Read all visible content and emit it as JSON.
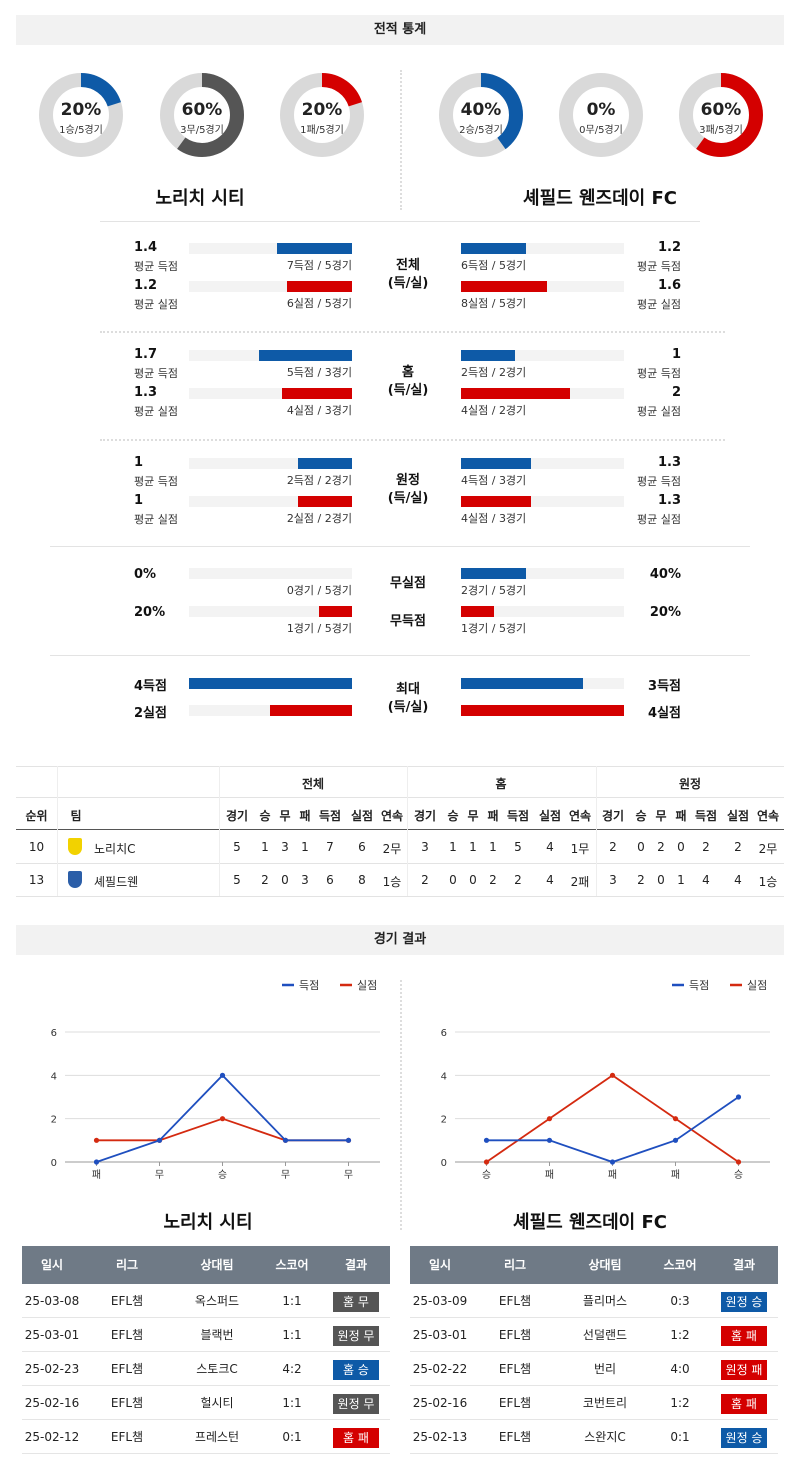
{
  "sections": {
    "stats_title": "전적 통계",
    "results_title": "경기 결과"
  },
  "teams": {
    "home": "노리치 시티",
    "away": "셰필드 웬즈데이 FC"
  },
  "donuts": {
    "home": [
      {
        "pct": "20%",
        "sub": "1승/5경기",
        "value": 0.2,
        "color": "#0e5aa7"
      },
      {
        "pct": "60%",
        "sub": "3무/5경기",
        "value": 0.6,
        "color": "#555555"
      },
      {
        "pct": "20%",
        "sub": "1패/5경기",
        "value": 0.2,
        "color": "#d40000"
      }
    ],
    "away": [
      {
        "pct": "40%",
        "sub": "2승/5경기",
        "value": 0.4,
        "color": "#0e5aa7"
      },
      {
        "pct": "0%",
        "sub": "0무/5경기",
        "value": 0.0,
        "color": "#555555"
      },
      {
        "pct": "60%",
        "sub": "3패/5경기",
        "value": 0.6,
        "color": "#d40000"
      }
    ]
  },
  "stat_groups": [
    {
      "label1": "전체",
      "label2": "(득/실)",
      "rows": [
        {
          "home_val": "1.4",
          "home_lbl": "평균 득점",
          "home_text": "7득점 / 5경기",
          "home_ratio": 0.46,
          "away_val": "1.2",
          "away_lbl": "평균 득점",
          "away_text": "6득점 / 5경기",
          "away_ratio": 0.4,
          "color": "blue"
        },
        {
          "home_val": "1.2",
          "home_lbl": "평균 실점",
          "home_text": "6실점 / 5경기",
          "home_ratio": 0.4,
          "away_val": "1.6",
          "away_lbl": "평균 실점",
          "away_text": "8실점 / 5경기",
          "away_ratio": 0.53,
          "color": "red"
        }
      ]
    },
    {
      "label1": "홈",
      "label2": "(득/실)",
      "rows": [
        {
          "home_val": "1.7",
          "home_lbl": "평균 득점",
          "home_text": "5득점 / 3경기",
          "home_ratio": 0.57,
          "away_val": "1",
          "away_lbl": "평균 득점",
          "away_text": "2득점 / 2경기",
          "away_ratio": 0.33,
          "color": "blue"
        },
        {
          "home_val": "1.3",
          "home_lbl": "평균 실점",
          "home_text": "4실점 / 3경기",
          "home_ratio": 0.43,
          "away_val": "2",
          "away_lbl": "평균 실점",
          "away_text": "4실점 / 2경기",
          "away_ratio": 0.67,
          "color": "red"
        }
      ]
    },
    {
      "label1": "원정",
      "label2": "(득/실)",
      "rows": [
        {
          "home_val": "1",
          "home_lbl": "평균 득점",
          "home_text": "2득점 / 2경기",
          "home_ratio": 0.33,
          "away_val": "1.3",
          "away_lbl": "평균 득점",
          "away_text": "4득점 / 3경기",
          "away_ratio": 0.43,
          "color": "blue"
        },
        {
          "home_val": "1",
          "home_lbl": "평균 실점",
          "home_text": "2실점 / 2경기",
          "home_ratio": 0.33,
          "away_val": "1.3",
          "away_lbl": "평균 실점",
          "away_text": "4실점 / 3경기",
          "away_ratio": 0.43,
          "color": "red"
        }
      ]
    }
  ],
  "special": [
    {
      "home_val": "0%",
      "home_text": "0경기 / 5경기",
      "home_ratio": 0.0,
      "label": "무실점",
      "away_val": "40%",
      "away_text": "2경기 / 5경기",
      "away_ratio": 0.4,
      "color": "blue"
    },
    {
      "home_val": "20%",
      "home_text": "1경기 / 5경기",
      "home_ratio": 0.2,
      "label": "무득점",
      "away_val": "20%",
      "away_text": "1경기 / 5경기",
      "away_ratio": 0.2,
      "color": "red"
    }
  ],
  "max": {
    "label1": "최대",
    "label2": "(득/실)",
    "rows": [
      {
        "home_val": "4득점",
        "home_ratio": 1.0,
        "away_val": "3득점",
        "away_ratio": 0.75,
        "color": "blue"
      },
      {
        "home_val": "2실점",
        "home_ratio": 0.5,
        "away_val": "4실점",
        "away_ratio": 1.0,
        "color": "red"
      }
    ]
  },
  "standings": {
    "groups": [
      "전체",
      "홈",
      "원정"
    ],
    "cols": [
      "순위",
      "팀",
      "경기",
      "승",
      "무",
      "패",
      "득점",
      "실점",
      "연속"
    ],
    "rows": [
      {
        "rank": "10",
        "team": "노리치C",
        "badge_color": "#f2d200",
        "total": [
          "5",
          "1",
          "3",
          "1",
          "7",
          "6",
          "2무"
        ],
        "home": [
          "3",
          "1",
          "1",
          "1",
          "5",
          "4",
          "1무"
        ],
        "away": [
          "2",
          "0",
          "2",
          "0",
          "2",
          "2",
          "2무"
        ]
      },
      {
        "rank": "13",
        "team": "셰필드웬",
        "badge_color": "#2b5ea8",
        "total": [
          "5",
          "2",
          "0",
          "3",
          "6",
          "8",
          "1승"
        ],
        "home": [
          "2",
          "0",
          "0",
          "2",
          "2",
          "4",
          "2패"
        ],
        "away": [
          "3",
          "2",
          "0",
          "1",
          "4",
          "4",
          "1승"
        ]
      }
    ]
  },
  "chart_data": [
    {
      "type": "line",
      "categories": [
        "패",
        "무",
        "승",
        "무",
        "무"
      ],
      "ylim": [
        0,
        6
      ],
      "yticks": [
        0,
        2,
        4,
        6
      ],
      "series": [
        {
          "name": "득점",
          "values": [
            0,
            1,
            4,
            1,
            1
          ],
          "color": "#1f4fbf"
        },
        {
          "name": "실점",
          "values": [
            1,
            1,
            2,
            1,
            1
          ],
          "color": "#d42a10"
        }
      ],
      "legend": "top-right"
    },
    {
      "type": "line",
      "categories": [
        "승",
        "패",
        "패",
        "패",
        "승"
      ],
      "ylim": [
        0,
        6
      ],
      "yticks": [
        0,
        2,
        4,
        6
      ],
      "series": [
        {
          "name": "득점",
          "values": [
            1,
            1,
            0,
            1,
            3
          ],
          "color": "#1f4fbf"
        },
        {
          "name": "실점",
          "values": [
            0,
            2,
            4,
            2,
            0
          ],
          "color": "#d42a10"
        }
      ],
      "legend": "top-right"
    }
  ],
  "match_tables": {
    "headers": [
      "일시",
      "리그",
      "상대팀",
      "스코어",
      "결과"
    ],
    "home": [
      {
        "date": "25-03-08",
        "league": "EFL챔",
        "opp": "옥스퍼드",
        "score": "1:1",
        "result": "홈 무",
        "type": "draw"
      },
      {
        "date": "25-03-01",
        "league": "EFL챔",
        "opp": "블랙번",
        "score": "1:1",
        "result": "원정 무",
        "type": "draw"
      },
      {
        "date": "25-02-23",
        "league": "EFL챔",
        "opp": "스토크C",
        "score": "4:2",
        "result": "홈 승",
        "type": "win"
      },
      {
        "date": "25-02-16",
        "league": "EFL챔",
        "opp": "헐시티",
        "score": "1:1",
        "result": "원정 무",
        "type": "draw"
      },
      {
        "date": "25-02-12",
        "league": "EFL챔",
        "opp": "프레스턴",
        "score": "0:1",
        "result": "홈 패",
        "type": "lose"
      }
    ],
    "away": [
      {
        "date": "25-03-09",
        "league": "EFL챔",
        "opp": "플리머스",
        "score": "0:3",
        "result": "원정 승",
        "type": "win"
      },
      {
        "date": "25-03-01",
        "league": "EFL챔",
        "opp": "선덜랜드",
        "score": "1:2",
        "result": "홈 패",
        "type": "lose"
      },
      {
        "date": "25-02-22",
        "league": "EFL챔",
        "opp": "번리",
        "score": "4:0",
        "result": "원정 패",
        "type": "lose"
      },
      {
        "date": "25-02-16",
        "league": "EFL챔",
        "opp": "코번트리",
        "score": "1:2",
        "result": "홈 패",
        "type": "lose"
      },
      {
        "date": "25-02-13",
        "league": "EFL챔",
        "opp": "스완지C",
        "score": "0:1",
        "result": "원정 승",
        "type": "win"
      }
    ]
  }
}
